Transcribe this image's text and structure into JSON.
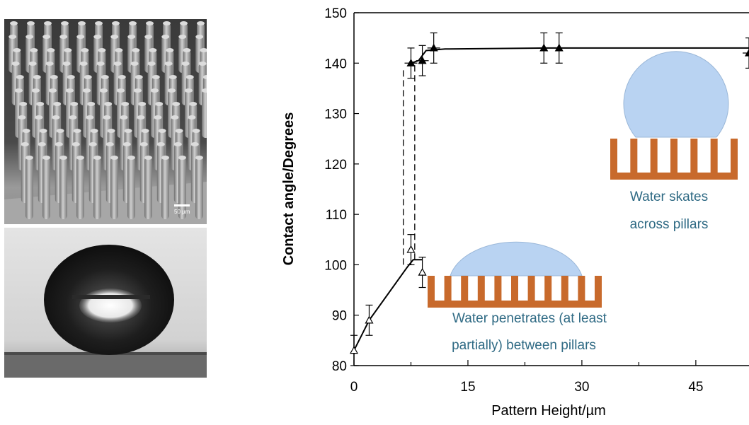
{
  "figure": {
    "sem_panel": {
      "scale_bar_label": "50 µm"
    },
    "inset_skate": {
      "caption_lines": [
        "Water skates",
        "across pillars"
      ]
    },
    "inset_penetrate": {
      "caption_lines": [
        "Water penetrates (at least",
        "partially) between pillars"
      ]
    },
    "colors": {
      "pillar": "#c86a2c",
      "water": "#b9d3f2",
      "caption_text": "#2f6a84",
      "curve": "#000000"
    }
  },
  "chart_data": {
    "type": "scatter",
    "title": "",
    "xlabel": "Pattern Height/µm",
    "ylabel": "Contact angle/Degrees",
    "xlim": [
      0,
      52
    ],
    "ylim": [
      80,
      150
    ],
    "xticks": [
      0,
      15,
      30,
      45
    ],
    "yticks": [
      80,
      90,
      100,
      110,
      120,
      130,
      140,
      150
    ],
    "grid": false,
    "legend": "none",
    "series": [
      {
        "marker": "open-triangle",
        "points": [
          {
            "x": 0,
            "y": 83,
            "yerr": 3
          },
          {
            "x": 2,
            "y": 89,
            "yerr": 3
          },
          {
            "x": 7.5,
            "y": 103,
            "yerr": 3
          },
          {
            "x": 9,
            "y": 98.5,
            "yerr": 3
          }
        ],
        "fit": [
          [
            0,
            83
          ],
          [
            2,
            89
          ],
          [
            7,
            99.5
          ],
          [
            7.8,
            101
          ],
          [
            9,
            101
          ]
        ]
      },
      {
        "marker": "filled-triangle",
        "points": [
          {
            "x": 7.5,
            "y": 140,
            "yerr": 3
          },
          {
            "x": 9,
            "y": 140.5,
            "yerr": 3
          },
          {
            "x": 10.5,
            "y": 143,
            "yerr": 3
          },
          {
            "x": 25,
            "y": 143,
            "yerr": 3
          },
          {
            "x": 27,
            "y": 143,
            "yerr": 3
          },
          {
            "x": 52,
            "y": 142,
            "yerr": 3
          }
        ],
        "fit": [
          [
            7.5,
            140
          ],
          [
            8.5,
            140.5
          ],
          [
            9.5,
            142.5
          ],
          [
            12,
            142.8
          ],
          [
            25,
            143
          ],
          [
            52,
            143
          ]
        ]
      }
    ],
    "transition_lines": [
      {
        "x": 6.5,
        "y_from": 100,
        "y_to": 139
      },
      {
        "x": 8,
        "y_from": 101,
        "y_to": 140
      }
    ]
  }
}
